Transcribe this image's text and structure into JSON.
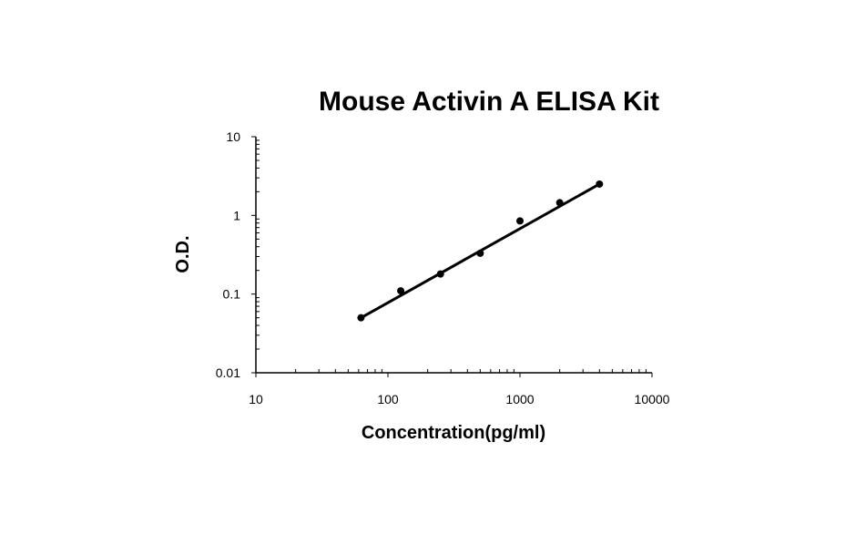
{
  "chart_data": {
    "type": "scatter",
    "title": "Mouse Activin A ELISA Kit",
    "xlabel": "Concentration(pg/ml)",
    "ylabel": "O.D.",
    "x_scale": "log",
    "y_scale": "log",
    "xlim": [
      10,
      10000
    ],
    "ylim": [
      0.01,
      10
    ],
    "x_ticks": [
      "10",
      "100",
      "1000",
      "10000"
    ],
    "y_ticks": [
      "0.01",
      "0.1",
      "1",
      "10"
    ],
    "grid": false,
    "legend": "none",
    "series": [
      {
        "x": [
          62.5,
          125,
          250,
          500,
          1000,
          2000,
          4000
        ],
        "y": [
          0.05,
          0.11,
          0.18,
          0.33,
          0.85,
          1.45,
          2.5
        ]
      }
    ],
    "trendline": {
      "type": "power",
      "x_range": [
        62.5,
        4000
      ],
      "y_range": [
        0.05,
        2.5
      ]
    },
    "colors": {
      "marker": "#000000",
      "line": "#000000",
      "axis": "#000000"
    }
  }
}
